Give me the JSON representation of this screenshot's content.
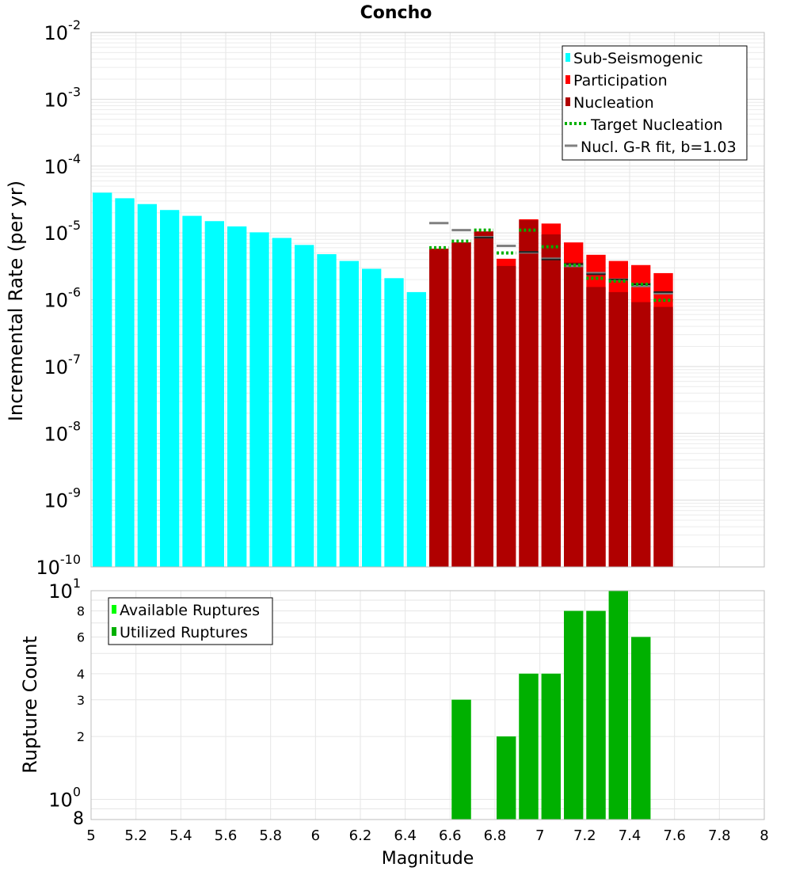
{
  "chart_data": [
    {
      "type": "bar",
      "title": "Concho",
      "ylabel": "Incremental Rate (per yr)",
      "xlabel": "",
      "y_scale": "log",
      "ylim": [
        1e-10,
        0.01
      ],
      "xlim": [
        5,
        8
      ],
      "y_ticks": [
        {
          "base": "10",
          "exp": "-10",
          "value": 1e-10
        },
        {
          "base": "10",
          "exp": "-9",
          "value": 1e-09
        },
        {
          "base": "10",
          "exp": "-8",
          "value": 1e-08
        },
        {
          "base": "10",
          "exp": "-7",
          "value": 1e-07
        },
        {
          "base": "10",
          "exp": "-6",
          "value": 1e-06
        },
        {
          "base": "10",
          "exp": "-5",
          "value": 1e-05
        },
        {
          "base": "10",
          "exp": "-4",
          "value": 0.0001
        },
        {
          "base": "10",
          "exp": "-3",
          "value": 0.001
        },
        {
          "base": "10",
          "exp": "-2",
          "value": 0.01
        }
      ],
      "grid": true,
      "legend_position": "top-right",
      "legend": [
        {
          "label": "Sub-Seismogenic",
          "color": "#00ffff",
          "kind": "box"
        },
        {
          "label": "Participation",
          "color": "#ff0000",
          "kind": "box"
        },
        {
          "label": "Nucleation",
          "color": "#b00000",
          "kind": "box"
        },
        {
          "label": "Target Nucleation",
          "color": "#00b000",
          "kind": "dotted"
        },
        {
          "label": "Nucl. G-R fit, b=1.03",
          "color": "#808080",
          "kind": "line"
        }
      ],
      "series": {
        "sub_seismogenic": {
          "color": "#00ffff",
          "x": [
            5.05,
            5.15,
            5.25,
            5.35,
            5.45,
            5.55,
            5.65,
            5.75,
            5.85,
            5.95,
            6.05,
            6.15,
            6.25,
            6.35,
            6.45
          ],
          "values": [
            4e-05,
            3.3e-05,
            2.7e-05,
            2.2e-05,
            1.8e-05,
            1.5e-05,
            1.25e-05,
            1.02e-05,
            8.4e-06,
            6.6e-06,
            4.8e-06,
            3.8e-06,
            2.9e-06,
            2.1e-06,
            1.3e-06
          ]
        },
        "participation": {
          "color": "#ff0000",
          "x": [
            6.55,
            6.65,
            6.75,
            6.85,
            6.95,
            7.05,
            7.15,
            7.25,
            7.35,
            7.45,
            7.55
          ],
          "values": [
            5.8e-06,
            7.2e-06,
            1.05e-05,
            4.1e-06,
            1.6e-05,
            1.38e-05,
            7.2e-06,
            4.7e-06,
            3.8e-06,
            3.3e-06,
            2.5e-06
          ]
        },
        "nucleation": {
          "color": "#b00000",
          "x": [
            6.55,
            6.65,
            6.75,
            6.85,
            6.95,
            7.05,
            7.15,
            7.25,
            7.35,
            7.45,
            7.55
          ],
          "values": [
            5.8e-06,
            7.2e-06,
            1.05e-05,
            3.2e-06,
            1.55e-05,
            9.5e-06,
            3.6e-06,
            1.55e-06,
            1.3e-06,
            9.2e-07,
            7.8e-07
          ]
        },
        "target_nucleation": {
          "color": "#00b000",
          "x": [
            6.55,
            6.65,
            6.75,
            6.85,
            6.95,
            7.05,
            7.15,
            7.25,
            7.35,
            7.45,
            7.55
          ],
          "values": [
            6e-06,
            7.5e-06,
            1.1e-05,
            5e-06,
            1.1e-05,
            6.2e-06,
            3.3e-06,
            2.1e-06,
            1.9e-06,
            1.7e-06,
            9.8e-07
          ]
        },
        "gr_fit": {
          "color": "#808080",
          "x": [
            6.55,
            6.65,
            6.75,
            6.85,
            6.95,
            7.05,
            7.15,
            7.25,
            7.35,
            7.45,
            7.55
          ],
          "values": [
            1.4e-05,
            1.1e-05,
            8.6e-06,
            6.4e-06,
            5.1e-06,
            4.1e-06,
            3.2e-06,
            2.5e-06,
            2e-06,
            1.6e-06,
            1.25e-06
          ]
        },
        "nucleation_marks": {
          "color": "#202020",
          "x": [
            6.75,
            6.95,
            7.05,
            7.15,
            7.25,
            7.35,
            7.45,
            7.55
          ],
          "values": [
            8.5e-06,
            5.2e-06,
            4e-06,
            3.4e-06,
            2.4e-06,
            2e-06,
            1.7e-06,
            1.3e-06
          ]
        }
      }
    },
    {
      "type": "bar",
      "title": "",
      "ylabel": "Rupture Count",
      "xlabel": "Magnitude",
      "y_scale": "log",
      "ylim": [
        0.8,
        10
      ],
      "xlim": [
        5,
        8
      ],
      "x_ticks": [
        "5",
        "5.2",
        "5.4",
        "5.6",
        "5.8",
        "6",
        "6.2",
        "6.4",
        "6.6",
        "6.8",
        "7",
        "7.2",
        "7.4",
        "7.6",
        "7.8",
        "8"
      ],
      "y_ticks": [
        {
          "label": "8",
          "base": "",
          "exp": "",
          "value": 0.8
        },
        {
          "label": "",
          "base": "10",
          "exp": "0",
          "value": 1
        },
        {
          "label": "2",
          "base": "",
          "exp": "",
          "value": 2
        },
        {
          "label": "3",
          "base": "",
          "exp": "",
          "value": 3
        },
        {
          "label": "4",
          "base": "",
          "exp": "",
          "value": 4
        },
        {
          "label": "6",
          "base": "",
          "exp": "",
          "value": 6
        },
        {
          "label": "8",
          "base": "",
          "exp": "",
          "value": 8
        },
        {
          "label": "",
          "base": "10",
          "exp": "1",
          "value": 10
        }
      ],
      "grid": true,
      "legend_position": "top-left",
      "legend": [
        {
          "label": "Available Ruptures",
          "color": "#00ff00",
          "kind": "box"
        },
        {
          "label": "Utilized Ruptures",
          "color": "#00b000",
          "kind": "box"
        }
      ],
      "series": {
        "available": {
          "color": "#00ff00",
          "x": [
            6.65,
            6.85,
            6.95,
            7.05,
            7.15,
            7.25,
            7.35,
            7.45
          ],
          "values": [
            3,
            2,
            4,
            4,
            8,
            8,
            10,
            6
          ]
        },
        "utilized": {
          "color": "#00b000",
          "x": [
            6.65,
            6.85,
            6.95,
            7.05,
            7.15,
            7.25,
            7.35,
            7.45
          ],
          "values": [
            3,
            2,
            4,
            4,
            8,
            8,
            10,
            6
          ]
        }
      }
    }
  ]
}
